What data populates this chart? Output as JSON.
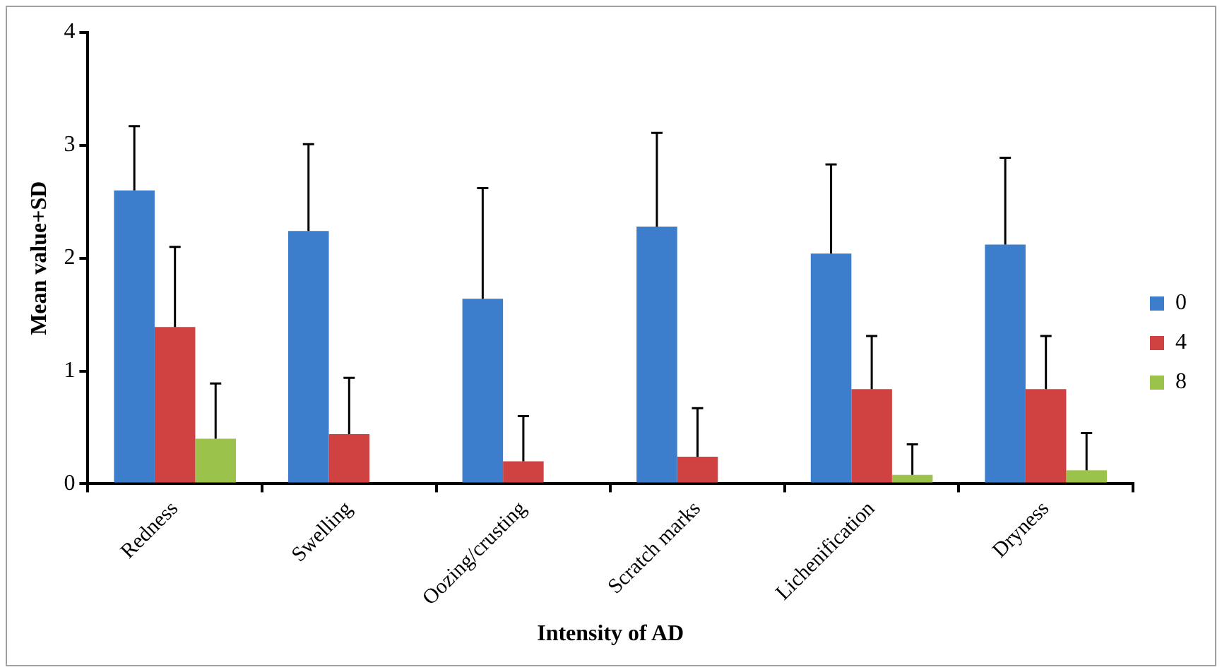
{
  "chart_data": {
    "type": "bar",
    "xlabel": "Intensity of AD",
    "ylabel": "Mean value+SD",
    "categories": [
      "Redness",
      "Swelling",
      "Oozing/crusting",
      "Scratch marks",
      "Lichenification",
      "Dryness"
    ],
    "series": [
      {
        "name": "0",
        "color": "#3c7dcc",
        "values": [
          2.6,
          2.24,
          1.64,
          2.28,
          2.04,
          2.12
        ],
        "errors": [
          [
            2.6,
            3.17
          ],
          [
            2.24,
            3.01
          ],
          [
            1.64,
            2.62
          ],
          [
            2.28,
            3.11
          ],
          [
            2.04,
            2.83
          ],
          [
            2.12,
            2.89
          ]
        ]
      },
      {
        "name": "4",
        "color": "#d04242",
        "values": [
          1.39,
          0.44,
          0.2,
          0.24,
          0.84,
          0.84
        ],
        "errors": [
          [
            1.39,
            2.1
          ],
          [
            0.44,
            0.94
          ],
          [
            0.2,
            0.6
          ],
          [
            0.24,
            0.67
          ],
          [
            0.84,
            1.31
          ],
          [
            0.84,
            1.31
          ]
        ]
      },
      {
        "name": "8",
        "color": "#9bc24a",
        "values": [
          0.4,
          0,
          0,
          0,
          0.08,
          0.12
        ],
        "errors": [
          [
            0.4,
            0.89
          ],
          null,
          null,
          null,
          [
            0.08,
            0.35
          ],
          [
            0.12,
            0.45
          ]
        ]
      }
    ],
    "ylim": [
      0,
      4
    ],
    "yticks": [
      0,
      1,
      2,
      3,
      4
    ],
    "grid": false,
    "legend": "right"
  }
}
